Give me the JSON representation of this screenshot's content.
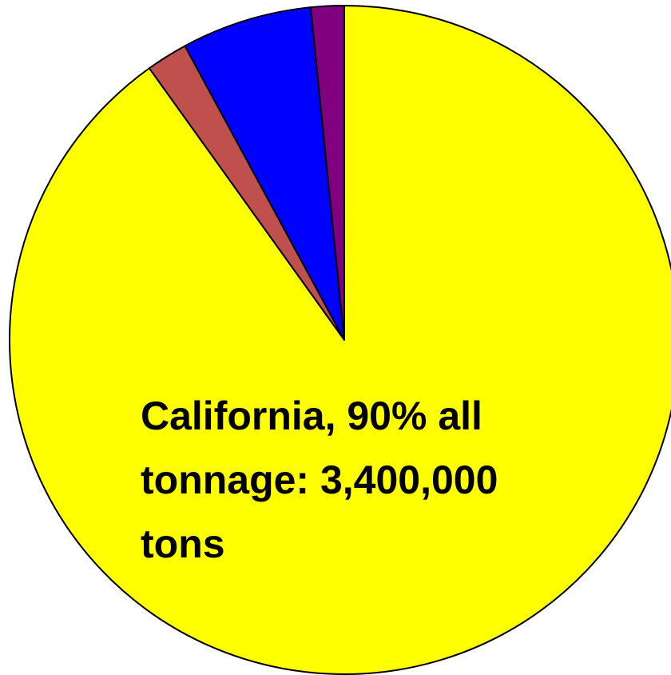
{
  "chart_data": {
    "type": "pie",
    "start_angle_deg": 0,
    "direction": "clockwise",
    "slices": [
      {
        "value": 90.1,
        "color": "#FFFF00",
        "label_lines": [
          "California, 90% all",
          "tonnage:  3,400,000",
          "tons"
        ]
      },
      {
        "value": 2.0,
        "color": "#C0504D",
        "label_lines": []
      },
      {
        "value": 6.3,
        "color": "#0000FF",
        "label_lines": []
      },
      {
        "value": 1.6,
        "color": "#800080",
        "label_lines": []
      }
    ]
  }
}
